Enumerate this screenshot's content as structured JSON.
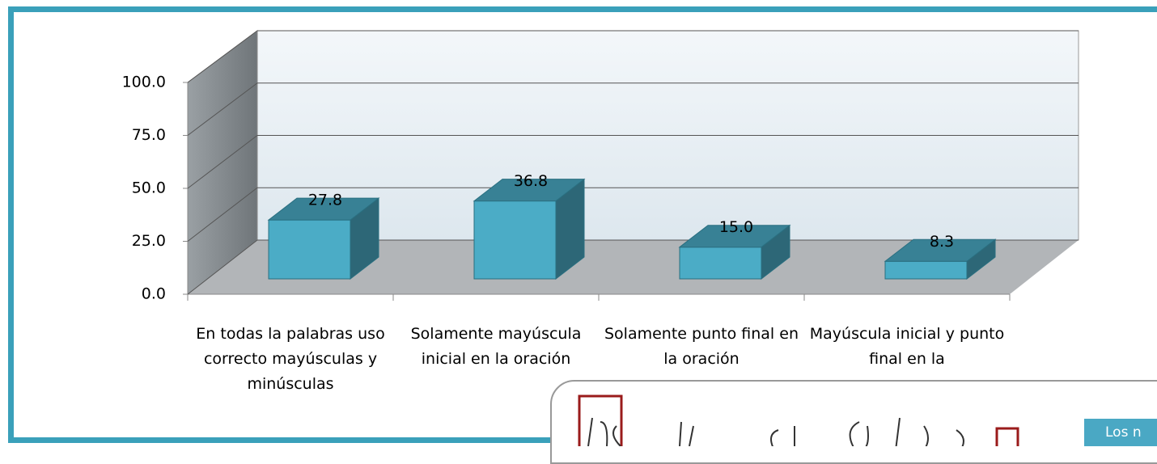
{
  "chart_data": {
    "type": "bar3d",
    "categories": [
      "En todas la palabras uso correcto mayúsculas y minúsculas",
      "Solamente mayúscula inicial en la oración",
      "Solamente punto final en la oración",
      "Mayúscula inicial y punto final en la"
    ],
    "values": [
      27.8,
      36.8,
      15.0,
      8.3
    ],
    "value_labels": [
      "27.8",
      "36.8",
      "15.0",
      "8.3"
    ],
    "color": "#4bacc6",
    "ylim": [
      0,
      100
    ],
    "yticks": [
      {
        "value": 0,
        "label": "0.0"
      },
      {
        "value": 25,
        "label": "25.0"
      },
      {
        "value": 50,
        "label": "50.0"
      },
      {
        "value": 75,
        "label": "75.0"
      },
      {
        "value": 100,
        "label": "100.0"
      }
    ],
    "grid": true
  },
  "overlay": {
    "button": "Los n"
  }
}
